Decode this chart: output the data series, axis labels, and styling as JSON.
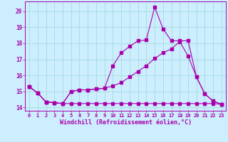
{
  "background_color": "#cceeff",
  "grid_color": "#aadddd",
  "line_color": "#aa00aa",
  "xlabel": "Windchill (Refroidissement éolien,°C)",
  "xlim": [
    -0.5,
    23.5
  ],
  "ylim": [
    13.8,
    20.6
  ],
  "yticks": [
    14,
    15,
    16,
    17,
    18,
    19,
    20
  ],
  "xticks": [
    0,
    1,
    2,
    3,
    4,
    5,
    6,
    7,
    8,
    9,
    10,
    11,
    12,
    13,
    14,
    15,
    16,
    17,
    18,
    19,
    20,
    21,
    22,
    23
  ],
  "series1": {
    "x": [
      0,
      1,
      2,
      3,
      4,
      5,
      6,
      7,
      8,
      9,
      10,
      11,
      12,
      13,
      14,
      15,
      16,
      17,
      18,
      19,
      20,
      21,
      22,
      23
    ],
    "y": [
      15.3,
      14.9,
      14.35,
      14.3,
      14.25,
      14.25,
      14.25,
      14.25,
      14.25,
      14.25,
      14.25,
      14.25,
      14.25,
      14.25,
      14.25,
      14.25,
      14.25,
      14.25,
      14.25,
      14.25,
      14.25,
      14.25,
      14.25,
      14.2
    ]
  },
  "series2": {
    "x": [
      0,
      1,
      2,
      3,
      4,
      5,
      6,
      7,
      8,
      9,
      10,
      11,
      12,
      13,
      14,
      15,
      16,
      17,
      18,
      19,
      20,
      21,
      22,
      23
    ],
    "y": [
      15.3,
      14.9,
      14.35,
      14.3,
      14.25,
      15.0,
      15.1,
      15.1,
      15.15,
      15.2,
      15.35,
      15.55,
      15.9,
      16.25,
      16.6,
      17.05,
      17.4,
      17.65,
      18.1,
      17.2,
      15.9,
      14.85,
      14.4,
      14.2
    ]
  },
  "series3": {
    "x": [
      0,
      1,
      2,
      3,
      4,
      5,
      6,
      7,
      8,
      9,
      10,
      11,
      12,
      13,
      14,
      15,
      16,
      17,
      18,
      19,
      20,
      21,
      22,
      23
    ],
    "y": [
      15.3,
      14.9,
      14.35,
      14.3,
      14.25,
      15.0,
      15.1,
      15.1,
      15.15,
      15.2,
      16.6,
      17.4,
      17.8,
      18.15,
      18.2,
      20.25,
      18.9,
      18.15,
      18.15,
      18.15,
      15.9,
      14.85,
      14.4,
      14.2
    ]
  }
}
